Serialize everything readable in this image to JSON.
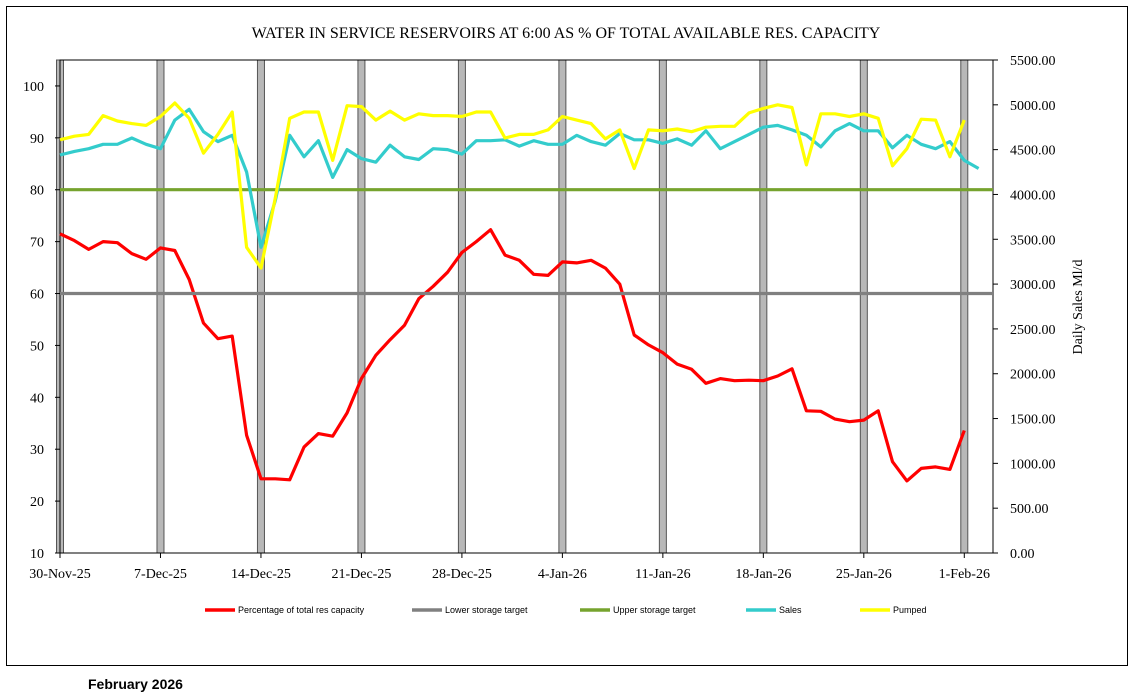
{
  "footer": "February 2026",
  "chart_data": {
    "type": "line",
    "title": "WATER IN SERVICE RESERVOIRS AT 6:00  AS % OF TOTAL AVAILABLE RES. CAPACITY",
    "y_left": {
      "min": 10,
      "max": 105,
      "ticks": [
        10,
        20,
        30,
        40,
        50,
        60,
        70,
        80,
        90,
        100
      ],
      "label": ""
    },
    "y_right": {
      "min": 0,
      "max": 5500,
      "ticks": [
        0,
        500,
        1000,
        1500,
        2000,
        2500,
        3000,
        3500,
        4000,
        4500,
        5000,
        5500
      ],
      "tick_labels": [
        "0.00",
        "500.00",
        "1000.00",
        "1500.00",
        "2000.00",
        "2500.00",
        "3000.00",
        "3500.00",
        "4000.00",
        "4500.00",
        "5000.00",
        "5500.00"
      ],
      "label": "Daily Sales Ml/d"
    },
    "x": {
      "start_day": 0,
      "end_day": 65,
      "tick_days": [
        0,
        7,
        14,
        21,
        28,
        35,
        42,
        49,
        56,
        63
      ],
      "tick_labels": [
        "30-Nov-25",
        "7-Dec-25",
        "14-Dec-25",
        "21-Dec-25",
        "28-Dec-25",
        "4-Jan-26",
        "11-Jan-26",
        "18-Jan-26",
        "25-Jan-26",
        "1-Feb-26"
      ]
    },
    "weekend_band_days": [
      0,
      7,
      14,
      21,
      28,
      35,
      42,
      49,
      56,
      63
    ],
    "series": [
      {
        "name": "Percentage of total res capacity",
        "axis": "left",
        "color": "#ff0000",
        "values": [
          71.5,
          70.2,
          68.5,
          70,
          69.8,
          67.7,
          66.6,
          68.8,
          68.3,
          62.7,
          54.3,
          51.3,
          51.8,
          32.7,
          24.3,
          24.3,
          24.1,
          30.4,
          33,
          32.5,
          37,
          43.6,
          48.1,
          51.1,
          53.9,
          59,
          61.4,
          64.1,
          67.9,
          70,
          72.3,
          67.4,
          66.4,
          63.7,
          63.5,
          66.1,
          65.9,
          66.4,
          64.9,
          61.8,
          52,
          50.1,
          48.6,
          46.4,
          45.4,
          42.7,
          43.6,
          43.2,
          43.3,
          43.2,
          44.1,
          45.5,
          37.4,
          37.3,
          35.8,
          35.3,
          35.6,
          37.4,
          27.6,
          23.9,
          26.3,
          26.6,
          26.1,
          33.6
        ]
      },
      {
        "name": "Lower storage target",
        "axis": "left",
        "color": "#808080",
        "values": [
          60,
          60
        ]
      },
      {
        "name": "Upper storage target",
        "axis": "left",
        "color": "#76a32e",
        "values": [
          80,
          80
        ]
      },
      {
        "name": "Sales",
        "axis": "right",
        "color": "#33cccc",
        "values": [
          4440,
          4480,
          4510,
          4560,
          4560,
          4630,
          4560,
          4510,
          4830,
          4950,
          4700,
          4590,
          4660,
          4250,
          3410,
          3930,
          4660,
          4420,
          4600,
          4190,
          4500,
          4400,
          4360,
          4550,
          4420,
          4390,
          4510,
          4500,
          4450,
          4600,
          4600,
          4610,
          4540,
          4600,
          4560,
          4560,
          4660,
          4590,
          4550,
          4680,
          4610,
          4610,
          4570,
          4620,
          4550,
          4710,
          4510,
          4590,
          4670,
          4750,
          4770,
          4720,
          4660,
          4530,
          4710,
          4790,
          4710,
          4710,
          4520,
          4660,
          4560,
          4510,
          4590,
          4380,
          4290
        ]
      },
      {
        "name": "Pumped",
        "axis": "right",
        "color": "#ffff00",
        "values": [
          4610,
          4650,
          4670,
          4880,
          4820,
          4790,
          4770,
          4870,
          5020,
          4850,
          4460,
          4670,
          4920,
          3410,
          3180,
          3960,
          4850,
          4920,
          4920,
          4380,
          4990,
          4980,
          4830,
          4930,
          4830,
          4900,
          4880,
          4880,
          4870,
          4920,
          4920,
          4630,
          4670,
          4670,
          4720,
          4870,
          4830,
          4790,
          4620,
          4720,
          4290,
          4720,
          4710,
          4730,
          4700,
          4750,
          4760,
          4760,
          4910,
          4960,
          5000,
          4970,
          4330,
          4900,
          4900,
          4870,
          4900,
          4850,
          4320,
          4510,
          4840,
          4830,
          4420,
          4830
        ]
      }
    ],
    "legend": [
      {
        "name": "Percentage of total res capacity",
        "color": "#ff0000"
      },
      {
        "name": "Lower storage target",
        "color": "#808080"
      },
      {
        "name": "Upper storage target",
        "color": "#76a32e"
      },
      {
        "name": "Sales",
        "color": "#33cccc"
      },
      {
        "name": "Pumped",
        "color": "#ffff00"
      }
    ]
  }
}
